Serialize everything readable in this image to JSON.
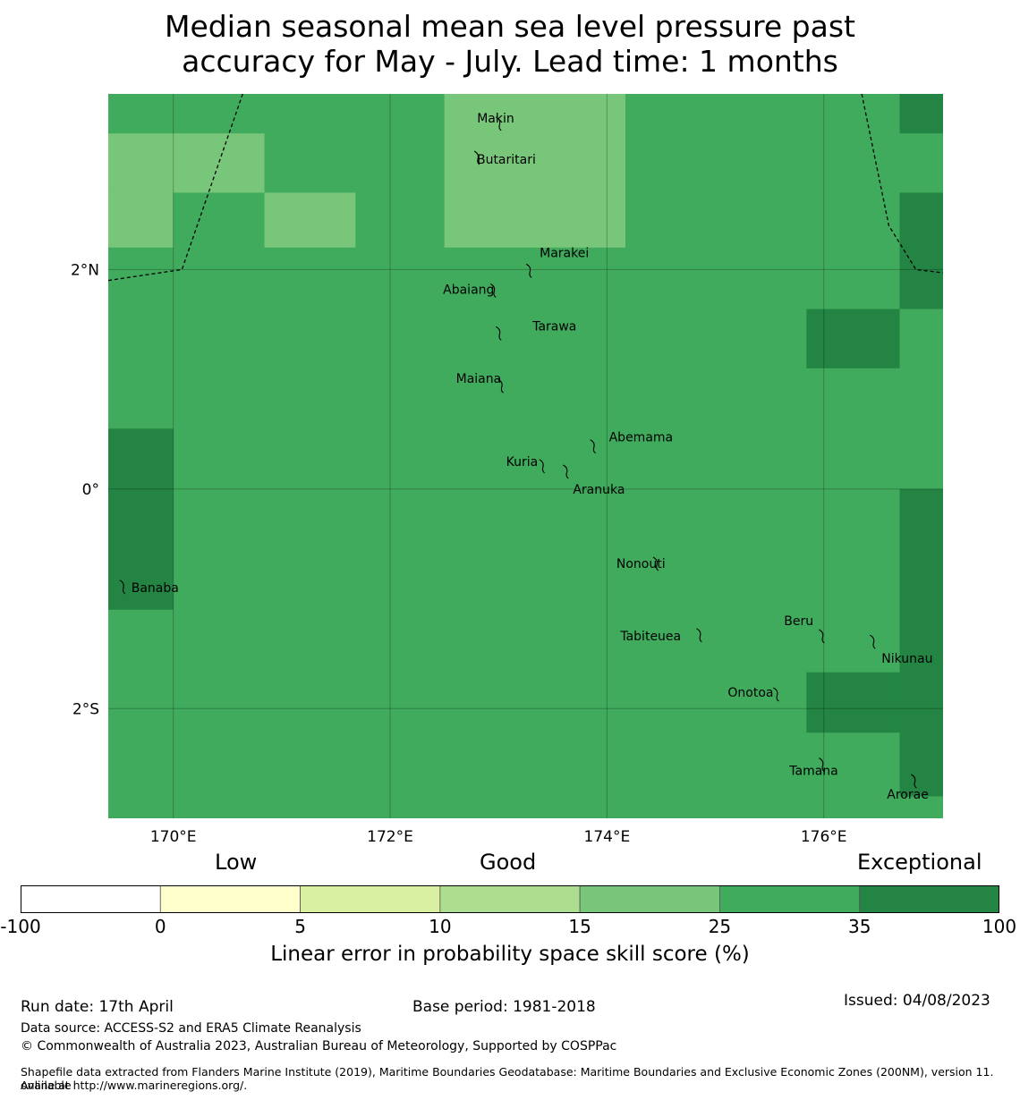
{
  "title": {
    "line1": "Median seasonal mean sea level pressure past",
    "line2": "accuracy for May - July. Lead time: 1 months"
  },
  "map": {
    "lon_range": [
      169.4,
      177.1
    ],
    "lat_range": [
      -3.0,
      3.6
    ],
    "lon_ticks": [
      {
        "value": 170,
        "label": "170°E"
      },
      {
        "value": 172,
        "label": "172°E"
      },
      {
        "value": 174,
        "label": "174°E"
      },
      {
        "value": 176,
        "label": "176°E"
      }
    ],
    "lat_ticks": [
      {
        "value": 2,
        "label": "2°N"
      },
      {
        "value": 0,
        "label": "0°"
      },
      {
        "value": -2,
        "label": "2°S"
      }
    ],
    "base_category": "25-35",
    "cells": [
      {
        "lon0": 176.7,
        "lon1": 177.1,
        "lat0": 3.24,
        "lat1": 3.6,
        "category": "35-100"
      },
      {
        "lon0": 169.4,
        "lon1": 170.84,
        "lat0": 2.7,
        "lat1": 3.24,
        "category": "15-25"
      },
      {
        "lon0": 169.4,
        "lon1": 170.0,
        "lat0": 2.2,
        "lat1": 2.7,
        "category": "15-25"
      },
      {
        "lon0": 170.84,
        "lon1": 171.68,
        "lat0": 2.2,
        "lat1": 2.7,
        "category": "15-25"
      },
      {
        "lon0": 172.5,
        "lon1": 174.17,
        "lat0": 2.2,
        "lat1": 3.6,
        "category": "15-25"
      },
      {
        "lon0": 176.7,
        "lon1": 177.1,
        "lat0": 1.64,
        "lat1": 2.7,
        "category": "35-100"
      },
      {
        "lon0": 175.84,
        "lon1": 176.7,
        "lat0": 1.1,
        "lat1": 1.64,
        "category": "35-100"
      },
      {
        "lon0": 169.4,
        "lon1": 170.0,
        "lat0": -1.1,
        "lat1": 0.55,
        "category": "35-100"
      },
      {
        "lon0": 176.7,
        "lon1": 177.1,
        "lat0": -2.8,
        "lat1": 0.0,
        "category": "35-100"
      },
      {
        "lon0": 175.84,
        "lon1": 176.7,
        "lat0": -2.22,
        "lat1": -1.67,
        "category": "35-100"
      }
    ],
    "boundaries": [
      [
        [
          169.4,
          1.9
        ],
        [
          170.08,
          2.0
        ],
        [
          170.64,
          3.6
        ]
      ],
      [
        [
          176.35,
          3.6
        ],
        [
          176.6,
          2.4
        ],
        [
          176.85,
          2.0
        ],
        [
          177.1,
          1.97
        ]
      ]
    ],
    "islands": [
      {
        "name": "Makin",
        "lon": 173.0,
        "lat": 3.34,
        "label_dx": -24,
        "label_dy": 0
      },
      {
        "name": "Butaritari",
        "lon": 172.8,
        "lat": 3.03,
        "label_dx": 0,
        "label_dy": 8
      },
      {
        "name": "Marakei",
        "lon": 173.28,
        "lat": 2.0,
        "label_dx": 12,
        "label_dy": -14
      },
      {
        "name": "Abaiang",
        "lon": 172.95,
        "lat": 1.82,
        "label_dx": -56,
        "label_dy": 5
      },
      {
        "name": "Tarawa",
        "lon": 173.0,
        "lat": 1.43,
        "label_dx": 38,
        "label_dy": -2
      },
      {
        "name": "Maiana",
        "lon": 173.02,
        "lat": 0.95,
        "label_dx": -50,
        "label_dy": -2
      },
      {
        "name": "Abemama",
        "lon": 173.87,
        "lat": 0.4,
        "label_dx": 18,
        "label_dy": -4
      },
      {
        "name": "Kuria",
        "lon": 173.4,
        "lat": 0.22,
        "label_dx": -40,
        "label_dy": 1
      },
      {
        "name": "Aranuka",
        "lon": 173.62,
        "lat": 0.17,
        "label_dx": 8,
        "label_dy": 26
      },
      {
        "name": "Nonouti",
        "lon": 174.45,
        "lat": -0.67,
        "label_dx": -44,
        "label_dy": 6
      },
      {
        "name": "Banaba",
        "lon": 169.53,
        "lat": -0.88,
        "label_dx": 10,
        "label_dy": 7
      },
      {
        "name": "Tabiteuea",
        "lon": 174.85,
        "lat": -1.32,
        "label_dx": -88,
        "label_dy": 7
      },
      {
        "name": "Beru",
        "lon": 175.98,
        "lat": -1.33,
        "label_dx": -42,
        "label_dy": -11
      },
      {
        "name": "Nikunau",
        "lon": 176.45,
        "lat": -1.38,
        "label_dx": 10,
        "label_dy": 25
      },
      {
        "name": "Onotoa",
        "lon": 175.56,
        "lat": -1.86,
        "label_dx": -54,
        "label_dy": 4
      },
      {
        "name": "Tamana",
        "lon": 175.98,
        "lat": -2.5,
        "label_dx": -36,
        "label_dy": 13
      },
      {
        "name": "Arorae",
        "lon": 176.83,
        "lat": -2.65,
        "label_dx": -30,
        "label_dy": 21
      }
    ]
  },
  "scale_words": {
    "low": "Low",
    "good": "Good",
    "exceptional": "Exceptional"
  },
  "colorbar": {
    "ticks": [
      "-100",
      "0",
      "5",
      "10",
      "15",
      "25",
      "35",
      "100"
    ],
    "bins": [
      {
        "range": "-100-0",
        "color": "#ffffff"
      },
      {
        "range": "0-5",
        "color": "#ffffcc"
      },
      {
        "range": "5-10",
        "color": "#d9f0a3"
      },
      {
        "range": "10-15",
        "color": "#addd8e"
      },
      {
        "range": "15-25",
        "color": "#78c679"
      },
      {
        "range": "25-35",
        "color": "#41ab5d"
      },
      {
        "range": "35-100",
        "color": "#238443"
      }
    ],
    "label": "Linear error in probability space skill score (%)"
  },
  "footer": {
    "run_date": "Run date: 17th April",
    "base_period": "Base period: 1981-2018",
    "issued": "Issued: 04/08/2023",
    "data_source": "Data source: ACCESS-S2 and ERA5 Climate Reanalysis",
    "copyright": "© Commonwealth of Australia 2023, Australian Bureau of Meteorology, Supported by COSPPac",
    "shapefile_line1": "Shapefile data extracted from Flanders Marine Institute (2019), Maritime Boundaries Geodatabase: Maritime Boundaries and Exclusive Economic Zones (200NM), version 11. Available",
    "shapefile_line2": "online at http://www.marineregions.org/."
  }
}
